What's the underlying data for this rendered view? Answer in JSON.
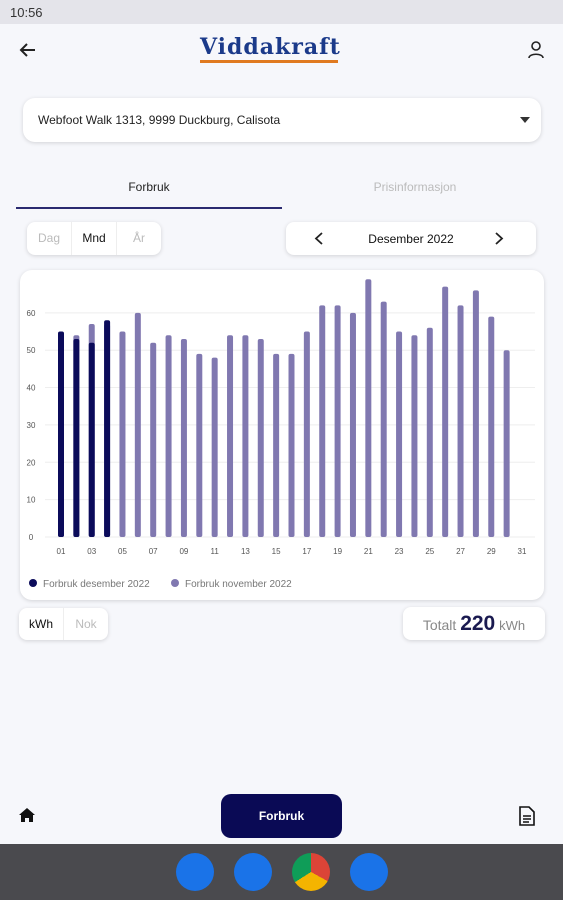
{
  "status": {
    "time": "10:56"
  },
  "header": {
    "logo": "Viddakraft"
  },
  "address": "Webfoot Walk 1313, 9999 Duckburg, Calisota",
  "tabs": [
    "Forbruk",
    "Prisinformasjon"
  ],
  "period_buttons": [
    "Dag",
    "Mnd",
    "År"
  ],
  "month": "Desember 2022",
  "unit_buttons": [
    "kWh",
    "Nok"
  ],
  "total": {
    "label": "Totalt",
    "value": 220,
    "unit": "kWh"
  },
  "bottom_button": "Forbruk",
  "chart_data": {
    "type": "bar",
    "categories": [
      "01",
      null,
      "03",
      null,
      "05",
      null,
      "07",
      null,
      "09",
      null,
      "11",
      null,
      "13",
      null,
      "15",
      null,
      "17",
      null,
      "19",
      null,
      "21",
      null,
      "23",
      null,
      "25",
      null,
      "27",
      null,
      "29",
      null,
      "31"
    ],
    "series": [
      {
        "name": "Forbruk november 2022",
        "color": "#8078b0",
        "values": [
          54,
          54,
          57,
          57,
          55,
          60,
          52,
          54,
          53,
          49,
          48,
          54,
          54,
          53,
          49,
          49,
          55,
          62,
          62,
          60,
          69,
          63,
          55,
          54,
          56,
          67,
          62,
          66,
          59,
          50,
          null
        ]
      },
      {
        "name": "Forbruk desember 2022",
        "color": "#0b0b5a",
        "values": [
          55,
          53,
          52,
          58,
          null,
          null,
          null,
          null,
          null,
          null,
          null,
          null,
          null,
          null,
          null,
          null,
          null,
          null,
          null,
          null,
          null,
          null,
          null,
          null,
          null,
          null,
          null,
          null,
          null,
          null,
          null
        ]
      }
    ],
    "ylim": [
      0,
      72
    ],
    "yticks": [
      0,
      10,
      20,
      30,
      40,
      50,
      60
    ],
    "grid": true
  }
}
